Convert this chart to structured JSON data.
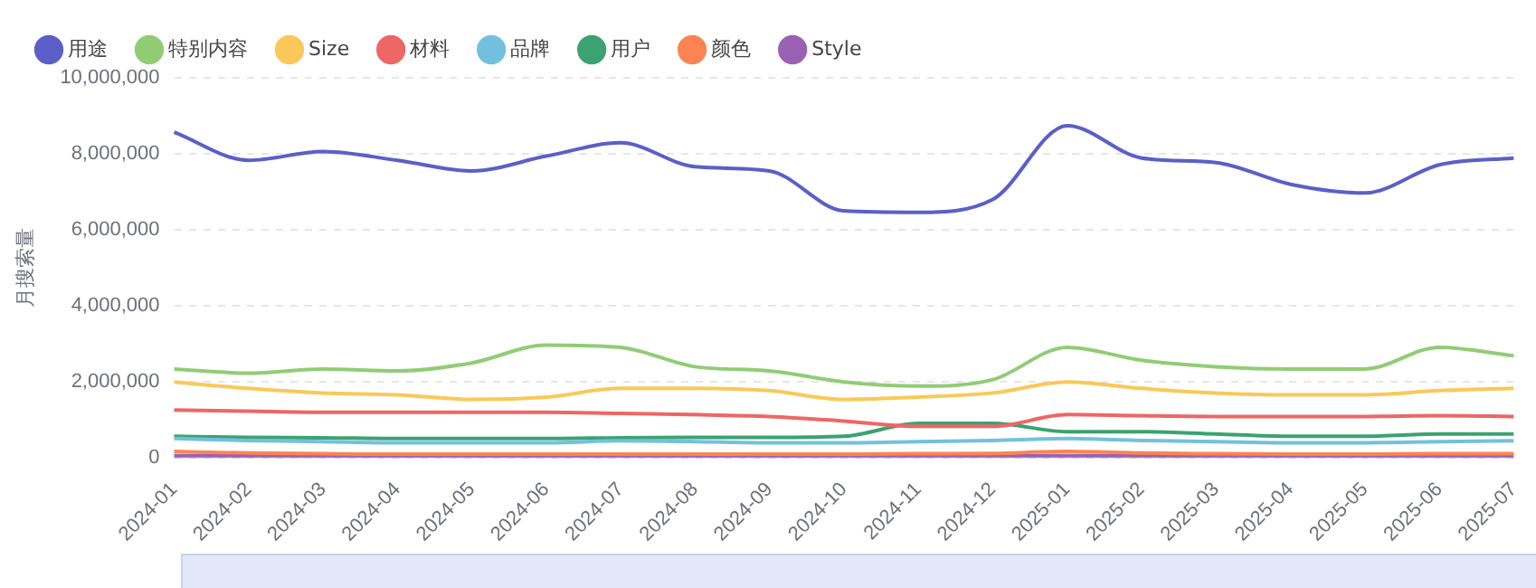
{
  "chart_data": {
    "type": "line",
    "ylabel": "月搜索量",
    "categories": [
      "2024-01",
      "2024-02",
      "2024-03",
      "2024-04",
      "2024-05",
      "2024-06",
      "2024-07",
      "2024-08",
      "2024-09",
      "2024-10",
      "2024-11",
      "2024-12",
      "2025-01",
      "2025-02",
      "2025-03",
      "2025-04",
      "2025-05",
      "2025-06",
      "2025-07"
    ],
    "series": [
      {
        "name": "用途",
        "color": "#5b5fc7",
        "values": [
          8570000,
          7830000,
          8060000,
          7830000,
          7550000,
          7940000,
          8290000,
          7660000,
          7550000,
          6500000,
          6460000,
          6800000,
          8740000,
          7890000,
          7770000,
          7200000,
          6970000,
          7710000,
          7890000
        ]
      },
      {
        "name": "特别内容",
        "color": "#91cc75",
        "values": [
          2340000,
          2230000,
          2340000,
          2290000,
          2500000,
          2970000,
          2910000,
          2400000,
          2290000,
          2000000,
          1890000,
          2060000,
          2910000,
          2570000,
          2400000,
          2340000,
          2340000,
          2910000,
          2690000
        ]
      },
      {
        "name": "Size",
        "color": "#fac858",
        "values": [
          2000000,
          1830000,
          1710000,
          1660000,
          1540000,
          1600000,
          1830000,
          1830000,
          1770000,
          1540000,
          1600000,
          1710000,
          2000000,
          1830000,
          1710000,
          1660000,
          1660000,
          1770000,
          1830000
        ]
      },
      {
        "name": "材料",
        "color": "#ee6666",
        "values": [
          1260000,
          1230000,
          1200000,
          1200000,
          1200000,
          1200000,
          1170000,
          1140000,
          1090000,
          970000,
          830000,
          830000,
          1140000,
          1110000,
          1090000,
          1090000,
          1090000,
          1110000,
          1090000
        ]
      },
      {
        "name": "品牌",
        "color": "#73c0de",
        "values": [
          510000,
          460000,
          430000,
          400000,
          400000,
          400000,
          450000,
          430000,
          400000,
          400000,
          430000,
          460000,
          510000,
          460000,
          430000,
          400000,
          400000,
          430000,
          450000
        ]
      },
      {
        "name": "用户",
        "color": "#3ba272",
        "values": [
          570000,
          540000,
          530000,
          510000,
          510000,
          510000,
          530000,
          540000,
          540000,
          570000,
          910000,
          910000,
          690000,
          690000,
          630000,
          570000,
          570000,
          630000,
          630000
        ]
      },
      {
        "name": "颜色",
        "color": "#fc8452",
        "values": [
          170000,
          130000,
          110000,
          100000,
          100000,
          100000,
          100000,
          100000,
          100000,
          100000,
          110000,
          120000,
          170000,
          130000,
          110000,
          100000,
          100000,
          110000,
          110000
        ]
      },
      {
        "name": "Style",
        "color": "#9a60b4",
        "values": [
          60000,
          60000,
          60000,
          60000,
          60000,
          60000,
          60000,
          60000,
          60000,
          60000,
          60000,
          60000,
          60000,
          60000,
          60000,
          60000,
          60000,
          60000,
          60000
        ]
      }
    ],
    "ylim": [
      0,
      10000000
    ],
    "yticks": [
      0,
      {
        "value": 2000000,
        "label": "2,000,000"
      },
      {
        "value": 4000000,
        "label": "4,000,000"
      },
      {
        "value": 6000000,
        "label": "6,000,000"
      },
      {
        "value": 8000000,
        "label": "8,000,000"
      },
      {
        "value": 10000000,
        "label": "10,000,000"
      }
    ],
    "grid": "y",
    "legend": "top left",
    "marker": "none",
    "line_style": "solid"
  }
}
